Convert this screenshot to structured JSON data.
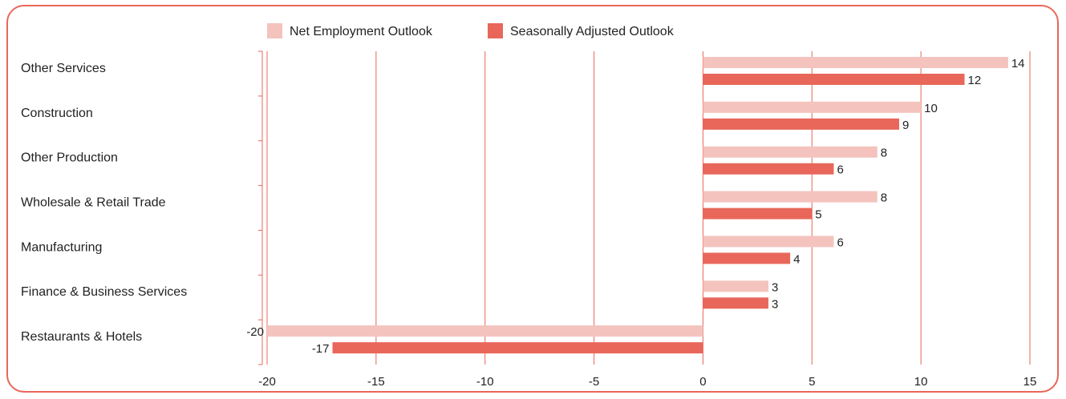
{
  "chart_data": {
    "type": "bar",
    "orientation": "horizontal",
    "categories": [
      "Other Services",
      "Construction",
      "Other Production",
      "Wholesale & Retail Trade",
      "Manufacturing",
      "Finance & Business Services",
      "Restaurants & Hotels"
    ],
    "series": [
      {
        "name": "Net Employment Outlook",
        "color": "#f4c3bd",
        "values": [
          14,
          10,
          8,
          8,
          6,
          3,
          -20
        ]
      },
      {
        "name": "Seasonally Adjusted Outlook",
        "color": "#e8675a",
        "values": [
          12,
          9,
          6,
          5,
          4,
          3,
          -17
        ]
      }
    ],
    "xlim": [
      -20,
      15
    ],
    "xticks": [
      -20,
      -15,
      -10,
      -5,
      0,
      5,
      10,
      15
    ],
    "grid": "vertical",
    "legend": "top",
    "title": "",
    "xlabel": "",
    "ylabel": ""
  },
  "style": {
    "grid_color": "#e8675a",
    "frame_color": "#e8675a"
  }
}
